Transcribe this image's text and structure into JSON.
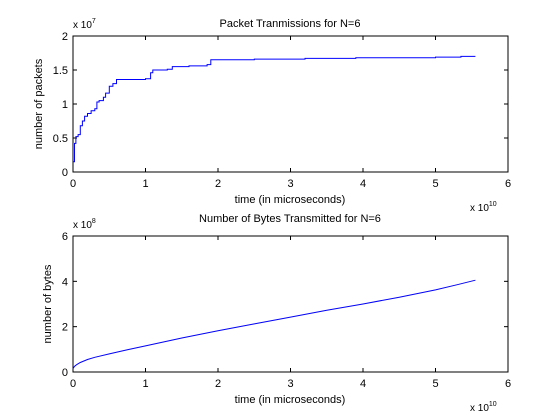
{
  "chart_data": [
    {
      "type": "line",
      "title": "Packet Tranmissions for N=6",
      "xlabel": "time (in microseconds)",
      "ylabel": "number of packets",
      "x_multiplier": {
        "base": "x 10",
        "exp": "10"
      },
      "y_multiplier": {
        "base": "x 10",
        "exp": "7"
      },
      "xlim": [
        0,
        6
      ],
      "ylim": [
        0,
        2
      ],
      "x_ticks": [
        "0",
        "1",
        "2",
        "3",
        "4",
        "5",
        "6"
      ],
      "y_ticks": [
        "0",
        "0.5",
        "1",
        "1.5",
        "2"
      ],
      "grid": false,
      "line_color": "#0000ff",
      "step": true,
      "series": [
        {
          "x": [
            0,
            0.02,
            0.04,
            0.07,
            0.1,
            0.13,
            0.16,
            0.2,
            0.25,
            0.3,
            0.33,
            0.36,
            0.42,
            0.45,
            0.5,
            0.55,
            0.6,
            0.8,
            1.0,
            1.07,
            1.1,
            1.3,
            1.37,
            1.6,
            1.85,
            1.9,
            2.5,
            3.2,
            3.9,
            4.6,
            5.0,
            5.35,
            5.55
          ],
          "y": [
            0.15,
            0.42,
            0.52,
            0.55,
            0.68,
            0.75,
            0.82,
            0.86,
            0.9,
            0.93,
            1.03,
            1.05,
            1.1,
            1.16,
            1.26,
            1.3,
            1.36,
            1.36,
            1.37,
            1.46,
            1.5,
            1.51,
            1.55,
            1.56,
            1.58,
            1.65,
            1.66,
            1.67,
            1.68,
            1.68,
            1.69,
            1.7,
            1.7
          ]
        }
      ]
    },
    {
      "type": "line",
      "title": "Number of Bytes Transmitted for N=6",
      "xlabel": "time (in microseconds)",
      "ylabel": "number of bytes",
      "x_multiplier": {
        "base": "x 10",
        "exp": "10"
      },
      "y_multiplier": {
        "base": "x 10",
        "exp": "8"
      },
      "xlim": [
        0,
        6
      ],
      "ylim": [
        0,
        6
      ],
      "x_ticks": [
        "0",
        "1",
        "2",
        "3",
        "4",
        "5",
        "6"
      ],
      "y_ticks": [
        "0",
        "2",
        "4",
        "6"
      ],
      "grid": false,
      "line_color": "#0000ff",
      "step": false,
      "series": [
        {
          "x": [
            0,
            0.02,
            0.05,
            0.1,
            0.2,
            0.3,
            0.5,
            0.75,
            1.0,
            1.5,
            2.0,
            2.5,
            3.0,
            3.5,
            4.0,
            4.5,
            5.0,
            5.3,
            5.55
          ],
          "y": [
            0.15,
            0.25,
            0.32,
            0.42,
            0.55,
            0.65,
            0.8,
            0.98,
            1.15,
            1.5,
            1.82,
            2.12,
            2.42,
            2.72,
            3.0,
            3.3,
            3.62,
            3.85,
            4.05
          ]
        }
      ]
    }
  ]
}
